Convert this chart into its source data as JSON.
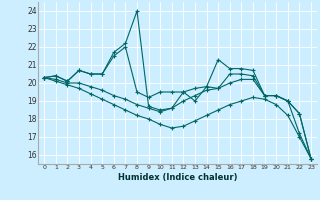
{
  "xlabel": "Humidex (Indice chaleur)",
  "background_color": "#cceeff",
  "grid_color": "#ffffff",
  "line_color": "#006666",
  "xlim": [
    -0.5,
    23.5
  ],
  "ylim": [
    15.5,
    24.5
  ],
  "xticks": [
    0,
    1,
    2,
    3,
    4,
    5,
    6,
    7,
    8,
    9,
    10,
    11,
    12,
    13,
    14,
    15,
    16,
    17,
    18,
    19,
    20,
    21,
    22,
    23
  ],
  "yticks": [
    16,
    17,
    18,
    19,
    20,
    21,
    22,
    23,
    24
  ],
  "lines": [
    [
      20.3,
      20.4,
      20.1,
      20.7,
      20.5,
      20.5,
      21.7,
      22.2,
      24.0,
      18.7,
      18.5,
      18.6,
      19.5,
      19.0,
      19.8,
      21.3,
      20.8,
      20.8,
      20.7,
      19.3,
      19.3,
      19.0,
      18.3,
      15.8
    ],
    [
      20.3,
      20.4,
      20.1,
      20.7,
      20.5,
      20.5,
      21.5,
      22.0,
      19.5,
      19.2,
      19.5,
      19.5,
      19.5,
      19.7,
      19.8,
      19.7,
      20.5,
      20.5,
      20.4,
      19.3,
      19.3,
      19.0,
      18.3,
      15.8
    ],
    [
      20.3,
      20.2,
      20.0,
      20.0,
      19.8,
      19.6,
      19.3,
      19.1,
      18.8,
      18.6,
      18.4,
      18.6,
      19.0,
      19.3,
      19.6,
      19.7,
      20.0,
      20.2,
      20.2,
      19.3,
      19.3,
      19.0,
      17.2,
      15.8
    ],
    [
      20.3,
      20.1,
      19.9,
      19.7,
      19.4,
      19.1,
      18.8,
      18.5,
      18.2,
      18.0,
      17.7,
      17.5,
      17.6,
      17.9,
      18.2,
      18.5,
      18.8,
      19.0,
      19.2,
      19.1,
      18.8,
      18.2,
      17.0,
      15.8
    ]
  ]
}
